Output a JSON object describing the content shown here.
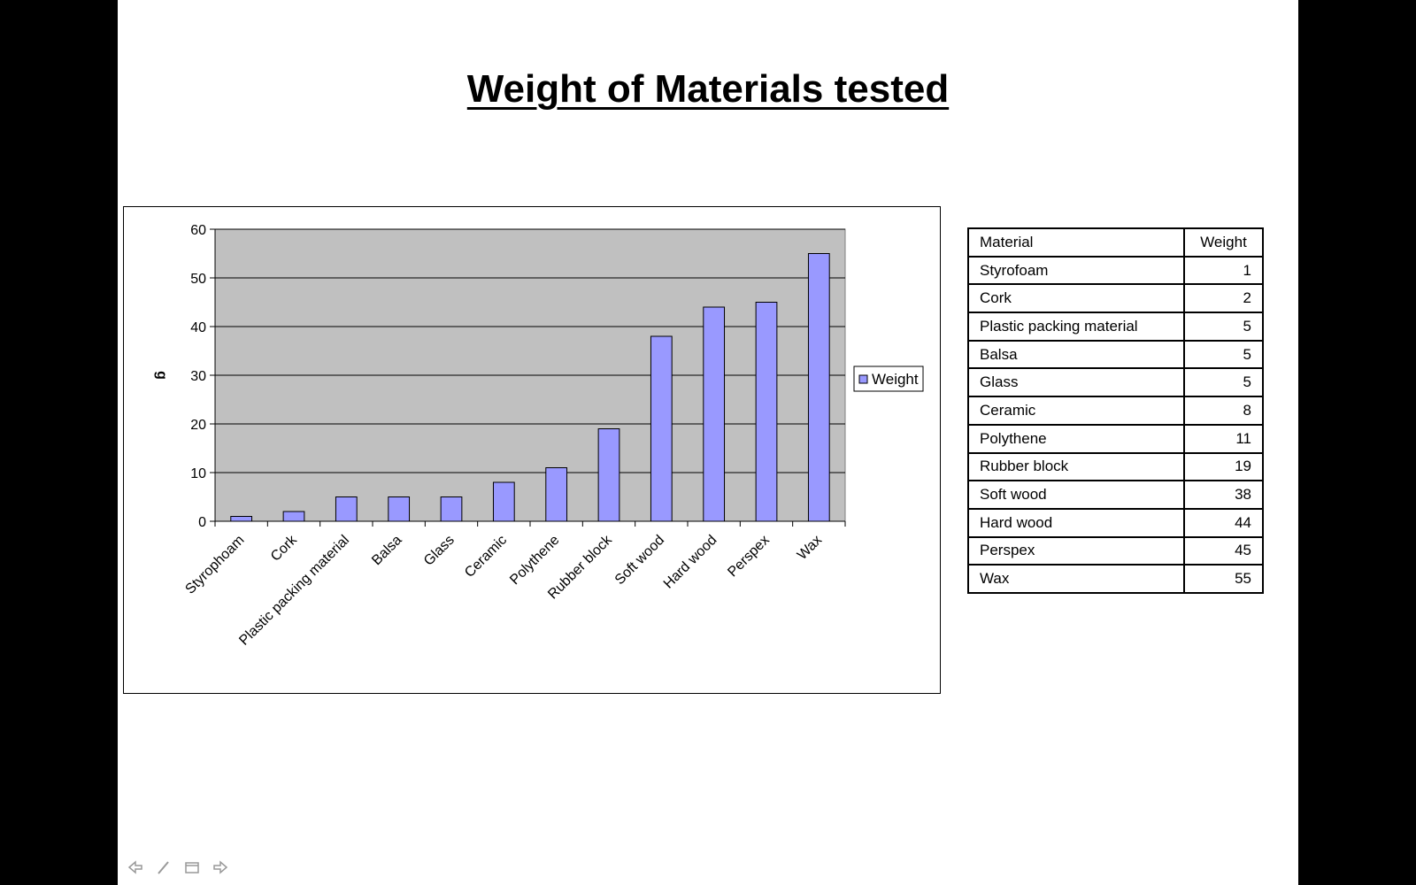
{
  "slide": {
    "title": "Weight of Materials tested"
  },
  "chart_data": {
    "type": "bar",
    "title": "",
    "xlabel": "",
    "ylabel": "g",
    "ylim": [
      0,
      60
    ],
    "yticks": [
      0,
      10,
      20,
      30,
      40,
      50,
      60
    ],
    "grid": true,
    "legend": "right",
    "categories": [
      "Styrophoam",
      "Cork",
      "Plastic packing material",
      "Balsa",
      "Glass",
      "Ceramic",
      "Polythene",
      "Rubber block",
      "Soft wood",
      "Hard wood",
      "Perspex",
      "Wax"
    ],
    "series": [
      {
        "name": "Weight",
        "values": [
          1,
          2,
          5,
          5,
          5,
          8,
          11,
          19,
          38,
          44,
          45,
          55
        ]
      }
    ],
    "colors": {
      "bar": "#9999ff",
      "plot_area": "#c0c0c0"
    }
  },
  "table": {
    "headers": [
      "Material",
      "Weight"
    ],
    "rows": [
      [
        "Styrofoam",
        "1"
      ],
      [
        "Cork",
        "2"
      ],
      [
        "Plastic packing material",
        "5"
      ],
      [
        "Balsa",
        "5"
      ],
      [
        "Glass",
        "5"
      ],
      [
        "Ceramic",
        "8"
      ],
      [
        "Polythene",
        "11"
      ],
      [
        "Rubber block",
        "19"
      ],
      [
        "Soft wood",
        "38"
      ],
      [
        "Hard wood",
        "44"
      ],
      [
        "Perspex",
        "45"
      ],
      [
        "Wax",
        "55"
      ]
    ]
  },
  "nav": {
    "icons": [
      "back-arrow-icon",
      "pen-icon",
      "menu-icon",
      "forward-arrow-icon"
    ]
  }
}
